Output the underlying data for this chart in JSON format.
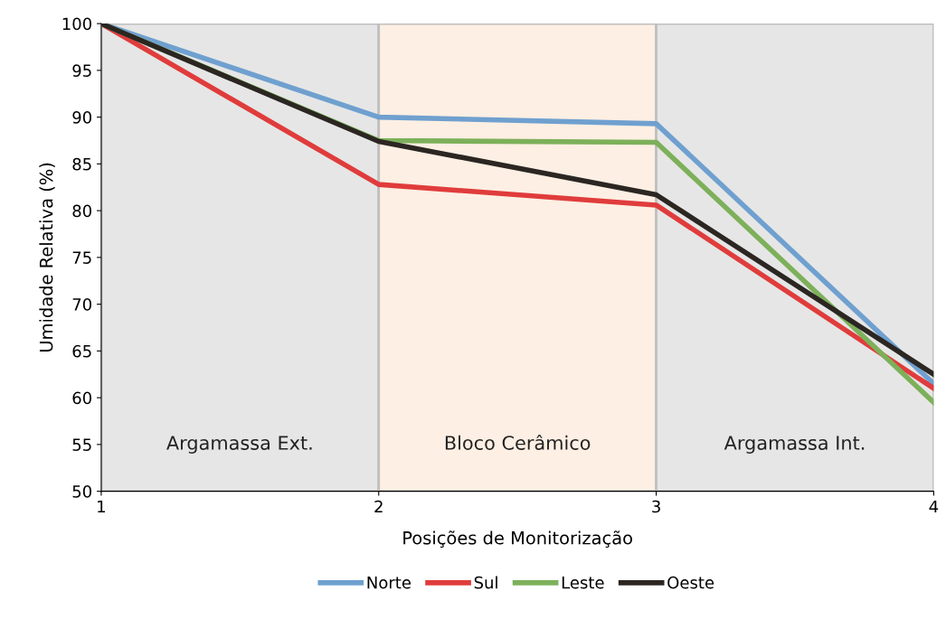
{
  "chart_data": {
    "type": "line",
    "xlabel": "Posições de Monitorização",
    "ylabel": "Umidade Relativa (%)",
    "x": [
      1,
      2,
      3,
      4
    ],
    "xlim": [
      1,
      4
    ],
    "xticks": [
      1,
      2,
      3,
      4
    ],
    "ylim": [
      50,
      100
    ],
    "yticks": [
      50,
      55,
      60,
      65,
      70,
      75,
      80,
      85,
      90,
      95,
      100
    ],
    "series": [
      {
        "name": "Norte",
        "color": "#6fa0cf",
        "values": [
          100,
          90.0,
          89.3,
          61.5
        ]
      },
      {
        "name": "Sul",
        "color": "#e03c3c",
        "values": [
          100,
          82.8,
          80.6,
          61.0
        ]
      },
      {
        "name": "Leste",
        "color": "#7db05a",
        "values": [
          100,
          87.5,
          87.3,
          59.5
        ]
      },
      {
        "name": "Oeste",
        "color": "#2b2622",
        "values": [
          100,
          87.4,
          81.7,
          62.5
        ]
      }
    ],
    "bands": [
      {
        "axis": "x",
        "from": 1,
        "to": 2,
        "label": "Argamassa Ext.",
        "color": "#e6e6e6"
      },
      {
        "axis": "x",
        "from": 2,
        "to": 3,
        "label": "Bloco Cerâmico",
        "color": "#fdefe3"
      },
      {
        "axis": "x",
        "from": 3,
        "to": 4,
        "label": "Argamassa Int.",
        "color": "#e6e6e6"
      }
    ],
    "grid": false,
    "legend": "bottom",
    "marker": "none",
    "line_style": "solid"
  }
}
